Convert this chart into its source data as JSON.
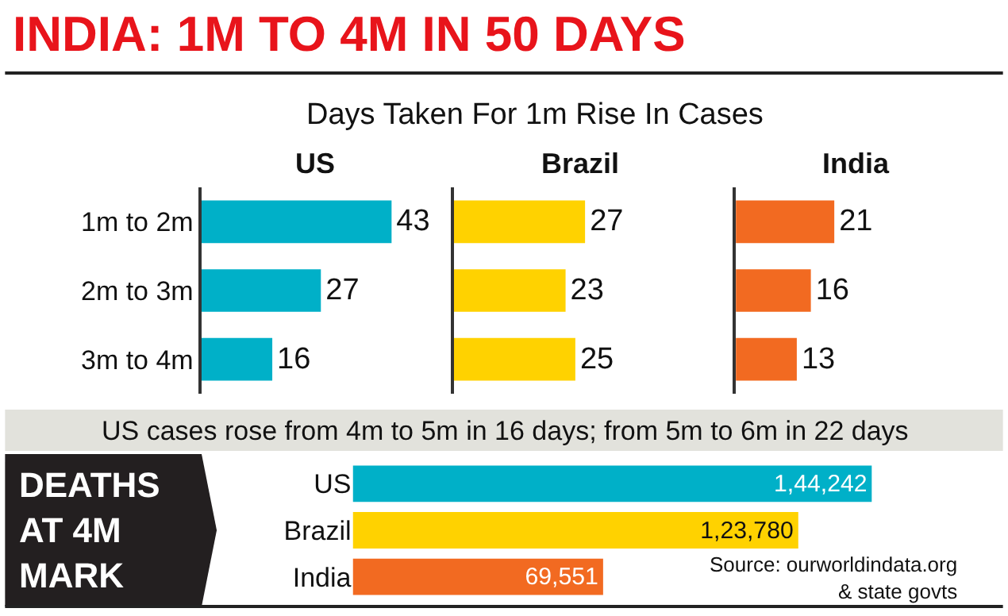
{
  "chart_data": [
    {
      "type": "other",
      "title": "INDIA: 1M TO 4M IN 50 DAYS",
      "subtitle": "Days Taken For 1m Rise In Cases",
      "annotations": [
        "US cases rose from 4m to 5m in 16 days; from 5m to 6m in 22 days"
      ]
    },
    {
      "type": "bar",
      "orientation": "horizontal",
      "title": "US",
      "categories": [
        "1m to 2m",
        "2m to 3m",
        "3m to 4m"
      ],
      "values": [
        43,
        27,
        16
      ],
      "color": "#00b0c8",
      "data_labels": true,
      "tick_labels": "y"
    },
    {
      "type": "bar",
      "orientation": "horizontal",
      "title": "Brazil",
      "categories": [
        "1m to 2m",
        "2m to 3m",
        "3m to 4m"
      ],
      "values": [
        27,
        23,
        25
      ],
      "color": "#ffd200",
      "data_labels": true,
      "tick_labels": false
    },
    {
      "type": "bar",
      "orientation": "horizontal",
      "title": "India",
      "categories": [
        "1m to 2m",
        "2m to 3m",
        "3m to 4m"
      ],
      "values": [
        21,
        16,
        13
      ],
      "color": "#f26a21",
      "data_labels": true,
      "tick_labels": false
    },
    {
      "type": "bar",
      "orientation": "horizontal",
      "title": "DEATHS AT 4M MARK",
      "categories": [
        "US",
        "Brazil",
        "India"
      ],
      "values": [
        144242,
        123780,
        69551
      ],
      "colors": [
        "#00b0c8",
        "#ffd200",
        "#f26a21"
      ],
      "value_labels": [
        "1,44,242",
        "1,23,780",
        "69,551"
      ],
      "tick_labels": "y",
      "annotations": [
        "Source: ourworldindata.org\n& state govts"
      ]
    }
  ]
}
